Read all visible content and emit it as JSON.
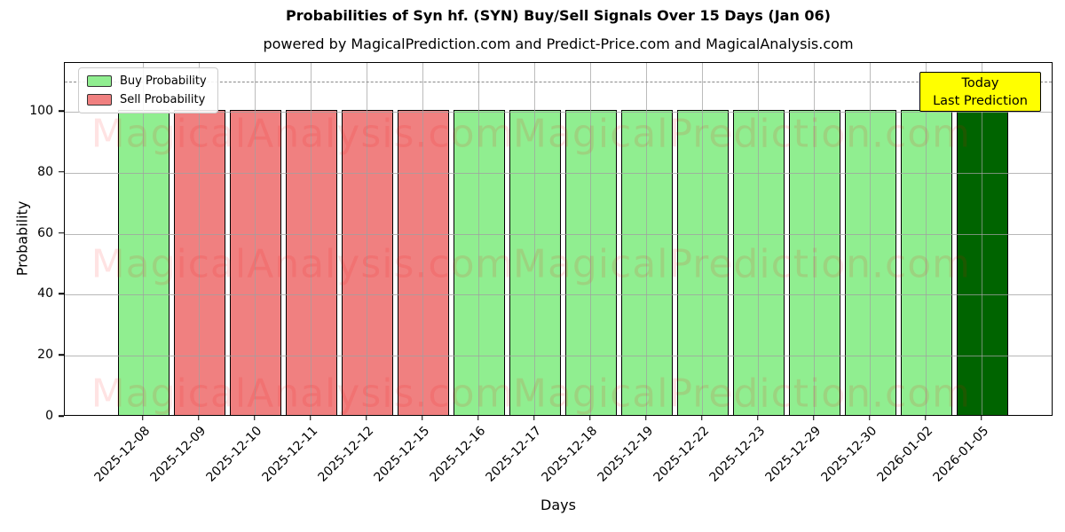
{
  "figure": {
    "title": "Probabilities of Syn hf. (SYN) Buy/Sell Signals Over 15 Days (Jan 06)",
    "subtitle": "powered by MagicalPrediction.com and Predict-Price.com and MagicalAnalysis.com"
  },
  "watermarks": {
    "texts": [
      "MagicalAnalysis.com",
      "MagicalPrediction.com"
    ],
    "color": "rgba(255,0,0,0.11)"
  },
  "legend": {
    "items": [
      {
        "label": "Buy Probability",
        "color": "#90ee90"
      },
      {
        "label": "Sell Probability",
        "color": "#f08080"
      }
    ]
  },
  "annotation": {
    "lines": [
      "Today",
      "Last Prediction"
    ],
    "bg_color": "#ffff00"
  },
  "chart_data": {
    "type": "bar",
    "title": "Probabilities of Syn hf. (SYN) Buy/Sell Signals Over 15 Days (Jan 06)",
    "xlabel": "Days",
    "ylabel": "Probability",
    "ylim": [
      0,
      116
    ],
    "yticks": [
      0,
      20,
      40,
      60,
      80,
      100
    ],
    "grid": true,
    "dashed_hline_y": 110,
    "legend_position": "upper left",
    "categories": [
      "2025-12-08",
      "2025-12-09",
      "2025-12-10",
      "2025-12-11",
      "2025-12-12",
      "2025-12-15",
      "2025-12-16",
      "2025-12-17",
      "2025-12-18",
      "2025-12-19",
      "2025-12-22",
      "2025-12-23",
      "2025-12-29",
      "2025-12-30",
      "2026-01-02",
      "2026-01-05"
    ],
    "values": [
      100,
      100,
      100,
      100,
      100,
      100,
      100,
      100,
      100,
      100,
      100,
      100,
      100,
      100,
      100,
      100
    ],
    "bar_signal": [
      "buy",
      "sell",
      "sell",
      "sell",
      "sell",
      "sell",
      "buy",
      "buy",
      "buy",
      "buy",
      "buy",
      "buy",
      "buy",
      "buy",
      "buy",
      "today"
    ],
    "signal_colors": {
      "buy": "#90ee90",
      "sell": "#f08080",
      "today": "#006400"
    },
    "bar_edge_color": "#000000"
  }
}
